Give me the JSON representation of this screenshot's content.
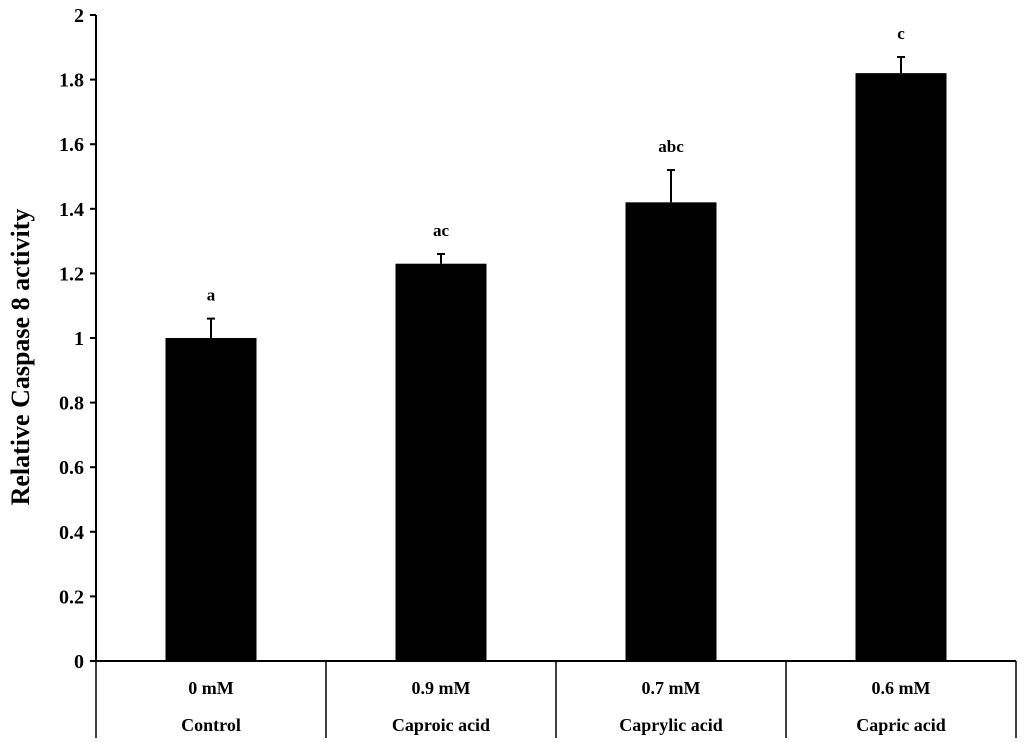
{
  "chart_data": {
    "type": "bar",
    "title": "",
    "ylabel": "Relative Caspase 8 activity",
    "xlabel": "",
    "ylim": [
      0,
      2
    ],
    "yticks": [
      0,
      0.2,
      0.4,
      0.6,
      0.8,
      1,
      1.2,
      1.4,
      1.6,
      1.8,
      2
    ],
    "ytick_labels": [
      "0",
      "0.2",
      "0.4",
      "0.6",
      "0.8",
      "1",
      "1.2",
      "1.4",
      "1.6",
      "1.8",
      "2"
    ],
    "grid": false,
    "legend": "none",
    "bar_color": "#000000",
    "categories": [
      {
        "dose": "0 mM",
        "treatment": "Control"
      },
      {
        "dose": "0.9 mM",
        "treatment": "Caproic acid"
      },
      {
        "dose": "0.7 mM",
        "treatment": "Caprylic acid"
      },
      {
        "dose": "0.6 mM",
        "treatment": "Capric acid"
      }
    ],
    "values": [
      1.0,
      1.23,
      1.42,
      1.82
    ],
    "error_plus": [
      0.06,
      0.03,
      0.1,
      0.05
    ],
    "significance_labels": [
      "a",
      "ac",
      "abc",
      "c"
    ]
  }
}
